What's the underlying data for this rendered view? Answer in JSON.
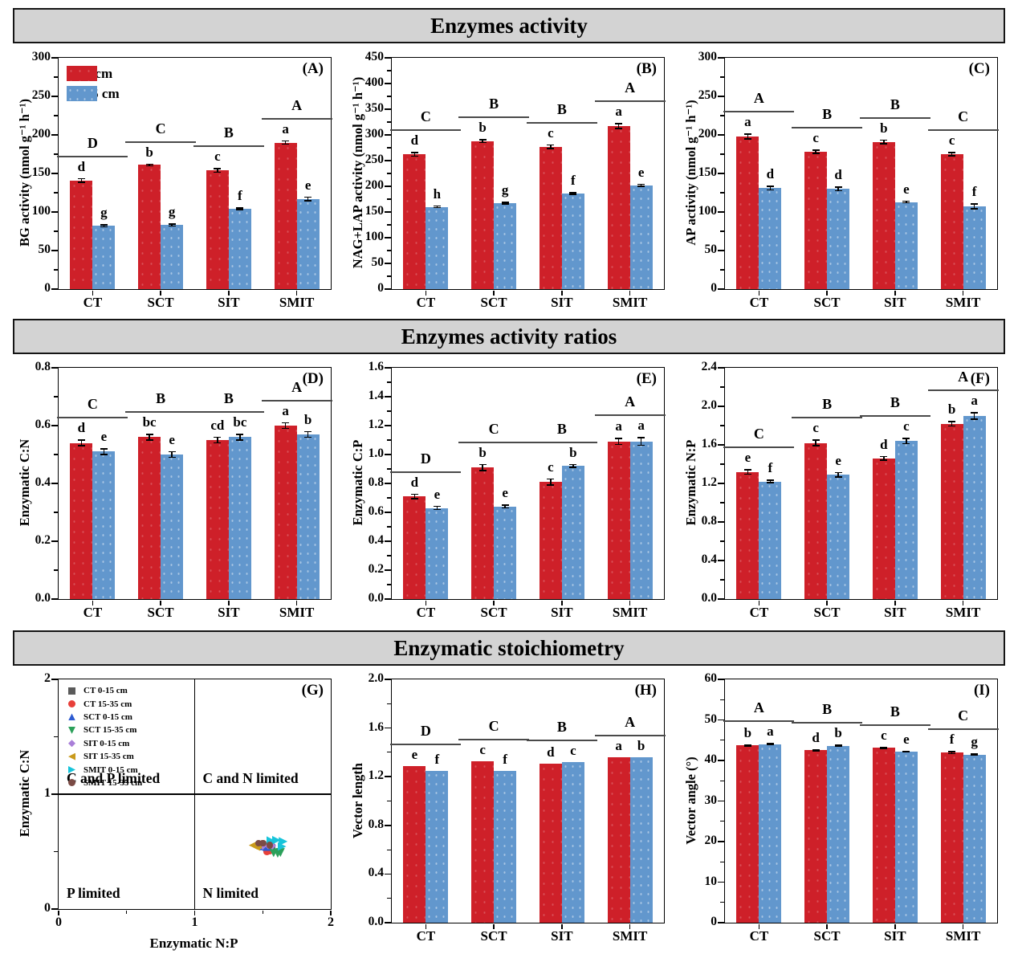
{
  "sections": [
    {
      "header": "Enzymes activity"
    },
    {
      "header": "Enzymes activity ratios"
    },
    {
      "header": "Enzymatic stoichiometry"
    }
  ],
  "figure_legend": {
    "labels": [
      "0-15 cm",
      "15-35 cm"
    ],
    "colors": [
      "#ce2029",
      "#6297cd"
    ]
  },
  "chart_data": [
    {
      "id": "A",
      "type": "bar",
      "panel_tag": "(A)",
      "ylabel": "BG activity (nmol g⁻¹ h⁻¹)",
      "ylim": [
        0,
        300
      ],
      "ystep": 50,
      "ydecimals": 0,
      "categories": [
        "CT",
        "SCT",
        "SIT",
        "SMIT"
      ],
      "group_letters": [
        "D",
        "C",
        "B",
        "A"
      ],
      "show_legend": true,
      "series": [
        {
          "name": "0-15 cm",
          "color": "#ce2029",
          "values": [
            141,
            161,
            154,
            190
          ],
          "errors": [
            3,
            2,
            3,
            3
          ],
          "letters": [
            "d",
            "b",
            "c",
            "a"
          ]
        },
        {
          "name": "15-35 cm",
          "color": "#6297cd",
          "values": [
            82,
            83,
            104,
            117
          ],
          "errors": [
            2,
            2,
            2,
            3
          ],
          "letters": [
            "g",
            "g",
            "f",
            "e"
          ]
        }
      ]
    },
    {
      "id": "B",
      "type": "bar",
      "panel_tag": "(B)",
      "ylabel": "NAG+LAP activity (nmol g⁻¹ h⁻¹)",
      "ylim": [
        0,
        450
      ],
      "ystep": 50,
      "ydecimals": 0,
      "categories": [
        "CT",
        "SCT",
        "SIT",
        "SMIT"
      ],
      "group_letters": [
        "C",
        "B",
        "B",
        "A"
      ],
      "show_legend": false,
      "series": [
        {
          "name": "0-15 cm",
          "color": "#ce2029",
          "values": [
            262,
            288,
            277,
            317
          ],
          "errors": [
            5,
            4,
            5,
            6
          ],
          "letters": [
            "d",
            "b",
            "c",
            "a"
          ]
        },
        {
          "name": "15-35 cm",
          "color": "#6297cd",
          "values": [
            160,
            167,
            186,
            202
          ],
          "errors": [
            3,
            3,
            3,
            3
          ],
          "letters": [
            "h",
            "g",
            "f",
            "e"
          ]
        }
      ]
    },
    {
      "id": "C",
      "type": "bar",
      "panel_tag": "(C)",
      "ylabel": "AP activity (nmol g⁻¹ h⁻¹)",
      "ylim": [
        0,
        300
      ],
      "ystep": 50,
      "ydecimals": 0,
      "categories": [
        "CT",
        "SCT",
        "SIT",
        "SMIT"
      ],
      "group_letters": [
        "A",
        "B",
        "B",
        "C"
      ],
      "show_legend": false,
      "series": [
        {
          "name": "0-15 cm",
          "color": "#ce2029",
          "values": [
            198,
            178,
            191,
            175
          ],
          "errors": [
            4,
            3,
            3,
            3
          ],
          "letters": [
            "a",
            "c",
            "b",
            "c"
          ]
        },
        {
          "name": "15-35 cm",
          "color": "#6297cd",
          "values": [
            131,
            130,
            113,
            107
          ],
          "errors": [
            3,
            3,
            2,
            4
          ],
          "letters": [
            "d",
            "d",
            "e",
            "f"
          ]
        }
      ]
    },
    {
      "id": "D",
      "type": "bar",
      "panel_tag": "(D)",
      "ylabel": "Enzymatic C:N",
      "ylim": [
        0,
        0.8
      ],
      "ystep": 0.2,
      "ydecimals": 1,
      "categories": [
        "CT",
        "SCT",
        "SIT",
        "SMIT"
      ],
      "group_letters": [
        "C",
        "B",
        "B",
        "A"
      ],
      "show_legend": false,
      "series": [
        {
          "name": "0-15 cm",
          "color": "#ce2029",
          "values": [
            0.54,
            0.56,
            0.55,
            0.6
          ],
          "errors": [
            0.012,
            0.012,
            0.012,
            0.012
          ],
          "letters": [
            "d",
            "bc",
            "cd",
            "a"
          ]
        },
        {
          "name": "15-35 cm",
          "color": "#6297cd",
          "values": [
            0.51,
            0.5,
            0.56,
            0.57
          ],
          "errors": [
            0.012,
            0.012,
            0.012,
            0.012
          ],
          "letters": [
            "e",
            "e",
            "bc",
            "b"
          ]
        }
      ]
    },
    {
      "id": "E",
      "type": "bar",
      "panel_tag": "(E)",
      "ylabel": "Enzymatic C:P",
      "ylim": [
        0,
        1.6
      ],
      "ystep": 0.2,
      "ydecimals": 1,
      "categories": [
        "CT",
        "SCT",
        "SIT",
        "SMIT"
      ],
      "group_letters": [
        "D",
        "C",
        "B",
        "A"
      ],
      "show_legend": false,
      "series": [
        {
          "name": "0-15 cm",
          "color": "#ce2029",
          "values": [
            0.71,
            0.91,
            0.81,
            1.09
          ],
          "errors": [
            0.02,
            0.025,
            0.025,
            0.025
          ],
          "letters": [
            "d",
            "b",
            "c",
            "a"
          ]
        },
        {
          "name": "15-35 cm",
          "color": "#6297cd",
          "values": [
            0.63,
            0.64,
            0.92,
            1.09
          ],
          "errors": [
            0.015,
            0.015,
            0.015,
            0.03
          ],
          "letters": [
            "e",
            "e",
            "b",
            "a"
          ]
        }
      ]
    },
    {
      "id": "F",
      "type": "bar",
      "panel_tag": "(F)",
      "ylabel": "Enzymatic N:P",
      "ylim": [
        0,
        2.4
      ],
      "ystep": 0.4,
      "ydecimals": 1,
      "categories": [
        "CT",
        "SCT",
        "SIT",
        "SMIT"
      ],
      "group_letters": [
        "C",
        "B",
        "B",
        "A"
      ],
      "show_legend": false,
      "series": [
        {
          "name": "0-15 cm",
          "color": "#ce2029",
          "values": [
            1.32,
            1.62,
            1.46,
            1.82
          ],
          "errors": [
            0.03,
            0.035,
            0.025,
            0.03
          ],
          "letters": [
            "e",
            "c",
            "d",
            "b"
          ]
        },
        {
          "name": "15-35 cm",
          "color": "#6297cd",
          "values": [
            1.22,
            1.29,
            1.64,
            1.9
          ],
          "errors": [
            0.02,
            0.03,
            0.035,
            0.04
          ],
          "letters": [
            "f",
            "e",
            "c",
            "a"
          ]
        }
      ]
    },
    {
      "id": "G",
      "type": "scatter",
      "panel_tag": "(G)",
      "xlabel": "Enzymatic N:P",
      "ylabel": "Enzymatic C:N",
      "xlim": [
        0,
        2
      ],
      "ylim": [
        0,
        2
      ],
      "xticks": [
        0,
        1,
        2
      ],
      "yticks": [
        0,
        1,
        2
      ],
      "minor_ticks": [
        0.5,
        1.5
      ],
      "quadrant_labels": {
        "top_left": "C and P limited",
        "top_right": "C and N limited",
        "bottom_left": "P limited",
        "bottom_right": "N limited"
      },
      "series": [
        {
          "name": "CT 0-15 cm",
          "marker": "square",
          "color": "#5a5a5a",
          "points": [
            [
              1.54,
              0.545
            ],
            [
              1.57,
              0.535
            ],
            [
              1.56,
              0.55
            ]
          ]
        },
        {
          "name": "CT 15-35 cm",
          "marker": "circle",
          "color": "#e8403a",
          "points": [
            [
              1.53,
              0.5
            ],
            [
              1.55,
              0.505
            ]
          ]
        },
        {
          "name": "SCT 0-15 cm",
          "marker": "triangle-up",
          "color": "#2d5bd1",
          "points": [
            [
              1.51,
              0.55
            ],
            [
              1.53,
              0.545
            ]
          ]
        },
        {
          "name": "SCT 15-35 cm",
          "marker": "triangle-down",
          "color": "#2ba05a",
          "points": [
            [
              1.58,
              0.49
            ],
            [
              1.61,
              0.485
            ],
            [
              1.63,
              0.492
            ]
          ]
        },
        {
          "name": "SIT 0-15 cm",
          "marker": "diamond",
          "color": "#a97fd8",
          "points": [
            [
              1.5,
              0.55
            ],
            [
              1.54,
              0.555
            ],
            [
              1.57,
              0.552
            ]
          ]
        },
        {
          "name": "SIT 15-35 cm",
          "marker": "triangle-left",
          "color": "#c99a1c",
          "points": [
            [
              1.43,
              0.555
            ],
            [
              1.45,
              0.545
            ],
            [
              1.46,
              0.56
            ]
          ]
        },
        {
          "name": "SMIT 0-15 cm",
          "marker": "triangle-right",
          "color": "#17c4da",
          "points": [
            [
              1.56,
              0.595
            ],
            [
              1.6,
              0.6
            ],
            [
              1.65,
              0.588
            ],
            [
              1.64,
              0.545
            ]
          ]
        },
        {
          "name": "SMIT 15-35 cm",
          "marker": "circle",
          "color": "#7b4b45",
          "points": [
            [
              1.47,
              0.575
            ],
            [
              1.5,
              0.575
            ],
            [
              1.55,
              0.555
            ]
          ]
        }
      ]
    },
    {
      "id": "H",
      "type": "bar",
      "panel_tag": "(H)",
      "ylabel": "Vector length",
      "ylim": [
        0,
        2.0
      ],
      "ystep": 0.4,
      "ydecimals": 1,
      "categories": [
        "CT",
        "SCT",
        "SIT",
        "SMIT"
      ],
      "group_letters": [
        "D",
        "C",
        "B",
        "A"
      ],
      "show_legend": false,
      "series": [
        {
          "name": "0-15 cm",
          "color": "#ce2029",
          "values": [
            1.29,
            1.33,
            1.31,
            1.36
          ],
          "errors": [
            0,
            0,
            0,
            0
          ],
          "letters": [
            "e",
            "c",
            "d",
            "a"
          ]
        },
        {
          "name": "15-35 cm",
          "color": "#6297cd",
          "values": [
            1.25,
            1.25,
            1.32,
            1.36
          ],
          "errors": [
            0,
            0,
            0,
            0
          ],
          "letters": [
            "f",
            "f",
            "c",
            "b"
          ]
        }
      ]
    },
    {
      "id": "I",
      "type": "bar",
      "panel_tag": "(I)",
      "ylabel": "Vector angle (°)",
      "ylim": [
        0,
        60
      ],
      "ystep": 10,
      "ydecimals": 0,
      "categories": [
        "CT",
        "SCT",
        "SIT",
        "SMIT"
      ],
      "group_letters": [
        "A",
        "B",
        "B",
        "C"
      ],
      "show_legend": false,
      "series": [
        {
          "name": "0-15 cm",
          "color": "#ce2029",
          "values": [
            43.7,
            42.5,
            43.1,
            41.9
          ],
          "errors": [
            0.3,
            0.3,
            0.3,
            0.4
          ],
          "letters": [
            "b",
            "d",
            "c",
            "f"
          ]
        },
        {
          "name": "15-35 cm",
          "color": "#6297cd",
          "values": [
            44.0,
            43.6,
            42.2,
            41.4
          ],
          "errors": [
            0.3,
            0.3,
            0.2,
            0.3
          ],
          "letters": [
            "a",
            "b",
            "e",
            "g"
          ]
        }
      ]
    }
  ]
}
